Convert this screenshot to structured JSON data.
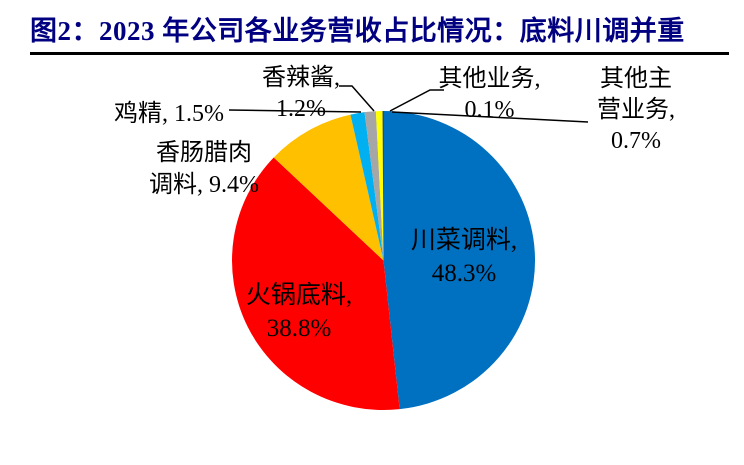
{
  "figure": {
    "title": "图2：2023 年公司各业务营收占比情况：底料川调并重",
    "title_color": "#000080",
    "rule_color": "#000000",
    "background": "#ffffff"
  },
  "chart_data": {
    "type": "pie",
    "title": "2023 年公司各业务营收占比情况：底料川调并重",
    "unit": "%",
    "start_angle_deg": 0,
    "direction": "clockwise",
    "legend_position": "none",
    "label_color": "#000000",
    "slices": [
      {
        "id": "chuancai-tiaoliao",
        "label": "川菜调料",
        "value": 48.3,
        "color": "#0070C0",
        "display": "川菜调料, 48.3%"
      },
      {
        "id": "huoguo-diliao",
        "label": "火锅底料",
        "value": 38.8,
        "color": "#FF0000",
        "display": "火锅底料, 38.8%"
      },
      {
        "id": "xiangchang-larou-tiaoliao",
        "label": "香肠腊肉调料",
        "value": 9.4,
        "color": "#FFC000",
        "display": "香肠腊肉调料, 9.4%"
      },
      {
        "id": "jijing",
        "label": "鸡精",
        "value": 1.5,
        "color": "#00B0F0",
        "display": "鸡精, 1.5%"
      },
      {
        "id": "xianglajiang",
        "label": "香辣酱",
        "value": 1.2,
        "color": "#A6A6A6",
        "display": "香辣酱, 1.2%"
      },
      {
        "id": "qita-zhuying-yewu",
        "label": "其他主营业务",
        "value": 0.7,
        "color": "#FFFF00",
        "display": "其他主营业务, 0.7%"
      },
      {
        "id": "qita-yewu",
        "label": "其他业务",
        "value": 0.1,
        "color": "#1F3864",
        "display": "其他业务, 0.1%"
      }
    ]
  },
  "labels": {
    "jijing": {
      "line1": "鸡精, 1.5%"
    },
    "xianglajiang": {
      "line1": "香辣酱,",
      "line2": "1.2%"
    },
    "xiangchang": {
      "line1": "香肠腊肉",
      "line2": "调料, 9.4%"
    },
    "qitayewu": {
      "line1": "其他业务,",
      "line2": "0.1%"
    },
    "qitazhuying": {
      "line1": "其他主",
      "line2": "营业务,",
      "line3": "0.7%"
    },
    "chuancai": {
      "line1": "川菜调料,",
      "line2": "48.3%"
    },
    "huoguo": {
      "line1": "火锅底料,",
      "line2": "38.8%"
    }
  }
}
